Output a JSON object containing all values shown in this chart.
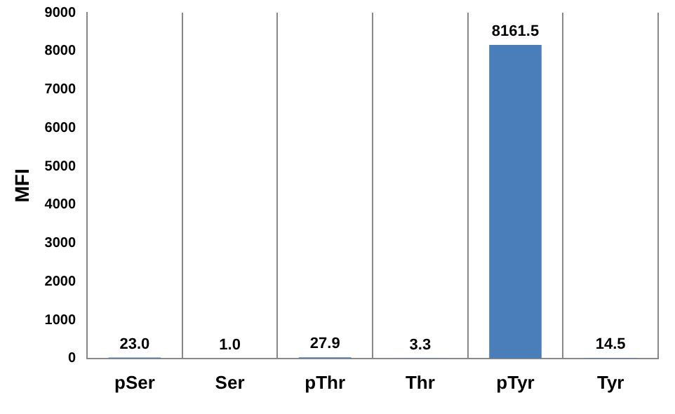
{
  "chart_data": {
    "type": "bar",
    "ylabel": "MFI",
    "categories": [
      "pSer",
      "Ser",
      "pThr",
      "Thr",
      "pTyr",
      "Tyr"
    ],
    "values": [
      23.0,
      1.0,
      27.9,
      3.3,
      8161.5,
      14.5
    ],
    "value_labels": [
      "23.0",
      "1.0",
      "27.9",
      "3.3",
      "8161.5",
      "14.5"
    ],
    "color": "#4a7ebb",
    "ylim": [
      0,
      9000
    ],
    "yticks": [
      0,
      1000,
      2000,
      3000,
      4000,
      5000,
      6000,
      7000,
      8000,
      9000
    ],
    "grid": "x",
    "legend": false
  }
}
